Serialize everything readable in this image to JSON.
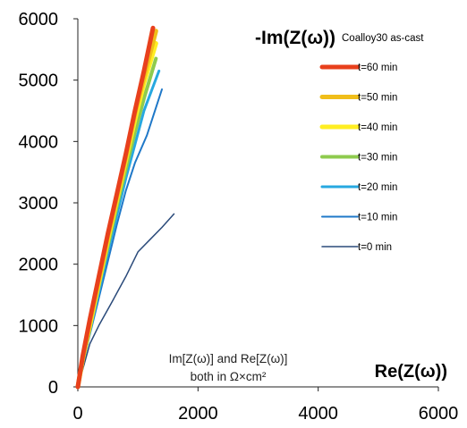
{
  "chart_data": {
    "type": "line",
    "title": "-Im(Z(ω))",
    "xlabel": "Re(Z(ω))",
    "ylabel": "",
    "xlim": [
      0,
      6000
    ],
    "ylim": [
      0,
      6000
    ],
    "x_ticks": [
      0,
      2000,
      4000,
      6000
    ],
    "y_ticks": [
      0,
      1000,
      2000,
      3000,
      4000,
      5000,
      6000
    ],
    "grid": false,
    "legend": {
      "title": "Coalloy30 as-cast",
      "position": "right"
    },
    "annotation": "Im[Z(ω)] and Re[Z(ω)] both in Ω×cm²",
    "series": [
      {
        "name": "t=60 min",
        "color": "#e8401c",
        "width": 5,
        "x": [
          0,
          80,
          200,
          350,
          500,
          650,
          800,
          950,
          1100,
          1250
        ],
        "y": [
          0,
          500,
          1100,
          1800,
          2500,
          3150,
          3800,
          4500,
          5150,
          5850
        ]
      },
      {
        "name": "t=50 min",
        "color": "#f0be1a",
        "width": 5,
        "x": [
          0,
          80,
          200,
          350,
          500,
          650,
          800,
          950,
          1100,
          1300
        ],
        "y": [
          0,
          450,
          1050,
          1750,
          2450,
          3100,
          3750,
          4450,
          5050,
          5800
        ]
      },
      {
        "name": "t=40 min",
        "color": "#ffee22",
        "width": 5,
        "x": [
          0,
          80,
          200,
          350,
          500,
          650,
          800,
          950,
          1100,
          1300
        ],
        "y": [
          0,
          450,
          1000,
          1700,
          2400,
          3050,
          3700,
          4350,
          4950,
          5600
        ]
      },
      {
        "name": "t=30 min",
        "color": "#8ecb4e",
        "width": 4,
        "x": [
          0,
          80,
          200,
          350,
          500,
          650,
          800,
          950,
          1100,
          1300
        ],
        "y": [
          0,
          420,
          950,
          1650,
          2300,
          2950,
          3550,
          4150,
          4700,
          5350
        ]
      },
      {
        "name": "t=20 min",
        "color": "#27a8e0",
        "width": 3,
        "x": [
          0,
          80,
          200,
          350,
          500,
          650,
          800,
          950,
          1100,
          1350
        ],
        "y": [
          0,
          380,
          900,
          1550,
          2200,
          2800,
          3400,
          3950,
          4500,
          5150
        ]
      },
      {
        "name": "t=10 min",
        "color": "#1f78c8",
        "width": 2,
        "x": [
          0,
          80,
          200,
          350,
          500,
          650,
          800,
          950,
          1150,
          1400
        ],
        "y": [
          0,
          350,
          850,
          1450,
          2050,
          2650,
          3200,
          3650,
          4100,
          4850
        ]
      },
      {
        "name": "t=0 min",
        "color": "#2a4a7a",
        "width": 1.5,
        "x": [
          0,
          100,
          200,
          350,
          550,
          800,
          1000,
          1200,
          1400,
          1600
        ],
        "y": [
          0,
          350,
          700,
          1000,
          1350,
          1800,
          2200,
          2400,
          2600,
          2820
        ]
      }
    ]
  }
}
